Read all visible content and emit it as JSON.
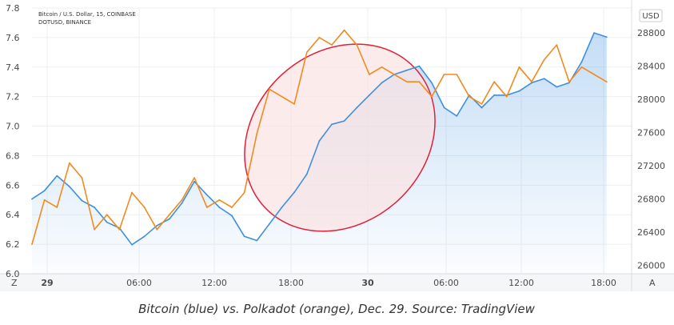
{
  "chart_data": {
    "type": "line",
    "legend": [
      "Bitcoin / U.S. Dollar, 15, COINBASE",
      "DOTUSD, BINANCE"
    ],
    "caption": "Bitcoin (blue) vs. Polkadot (orange), Dec. 29. Source: TradingView",
    "currency": "USD",
    "x_tick_labels": [
      "29",
      "06:00",
      "12:00",
      "18:00",
      "30",
      "06:00",
      "12:00",
      "18:00"
    ],
    "left_axis": {
      "ticks": [
        "6.0",
        "6.2",
        "6.4",
        "6.6",
        "6.8",
        "7.0",
        "7.2",
        "7.4",
        "7.6",
        "7.8"
      ],
      "ylim": [
        6.0,
        7.8
      ]
    },
    "right_axis": {
      "ticks": [
        "26000",
        "26400",
        "26800",
        "27200",
        "27600",
        "28000",
        "28400",
        "28800"
      ],
      "ylim": [
        25900,
        29100
      ]
    },
    "corner_buttons": {
      "left": "Z",
      "right": "A"
    },
    "x_hours": [
      -4,
      -3,
      -2,
      -1,
      0,
      1,
      2,
      3,
      4,
      5,
      6,
      7,
      8,
      9,
      10,
      11,
      12,
      13,
      14,
      15,
      16,
      17,
      18,
      19,
      20,
      21,
      22,
      23,
      24,
      25,
      26,
      27,
      28,
      29,
      30,
      31,
      32,
      33,
      34,
      35,
      36,
      37,
      38,
      39,
      40,
      41,
      42
    ],
    "series": [
      {
        "name": "Bitcoin",
        "axis": "right",
        "color": "#3d8fe0",
        "values": [
          26800,
          26900,
          27080,
          26950,
          26780,
          26700,
          26520,
          26450,
          26250,
          26350,
          26480,
          26560,
          26750,
          27010,
          26850,
          26700,
          26600,
          26350,
          26300,
          26500,
          26700,
          26880,
          27100,
          27500,
          27700,
          27740,
          27900,
          28050,
          28200,
          28300,
          28350,
          28400,
          28200,
          27900,
          27800,
          28050,
          27900,
          28050,
          28050,
          28100,
          28200,
          28250,
          28150,
          28200,
          28450,
          28800,
          28750
        ]
      },
      {
        "name": "Polkadot",
        "axis": "left",
        "color": "#f28a1f",
        "values": [
          6.2,
          6.5,
          6.45,
          6.75,
          6.65,
          6.3,
          6.4,
          6.3,
          6.55,
          6.45,
          6.3,
          6.4,
          6.5,
          6.65,
          6.45,
          6.5,
          6.45,
          6.55,
          6.95,
          7.25,
          7.2,
          7.15,
          7.5,
          7.6,
          7.55,
          7.65,
          7.55,
          7.35,
          7.4,
          7.35,
          7.3,
          7.3,
          7.2,
          7.35,
          7.35,
          7.2,
          7.15,
          7.3,
          7.2,
          7.4,
          7.3,
          7.45,
          7.55,
          7.3,
          7.4,
          7.35,
          7.3
        ]
      }
    ],
    "annotation": {
      "shape": "ellipse",
      "stroke": "#e0203a",
      "fill": "#fbe3e3"
    }
  }
}
